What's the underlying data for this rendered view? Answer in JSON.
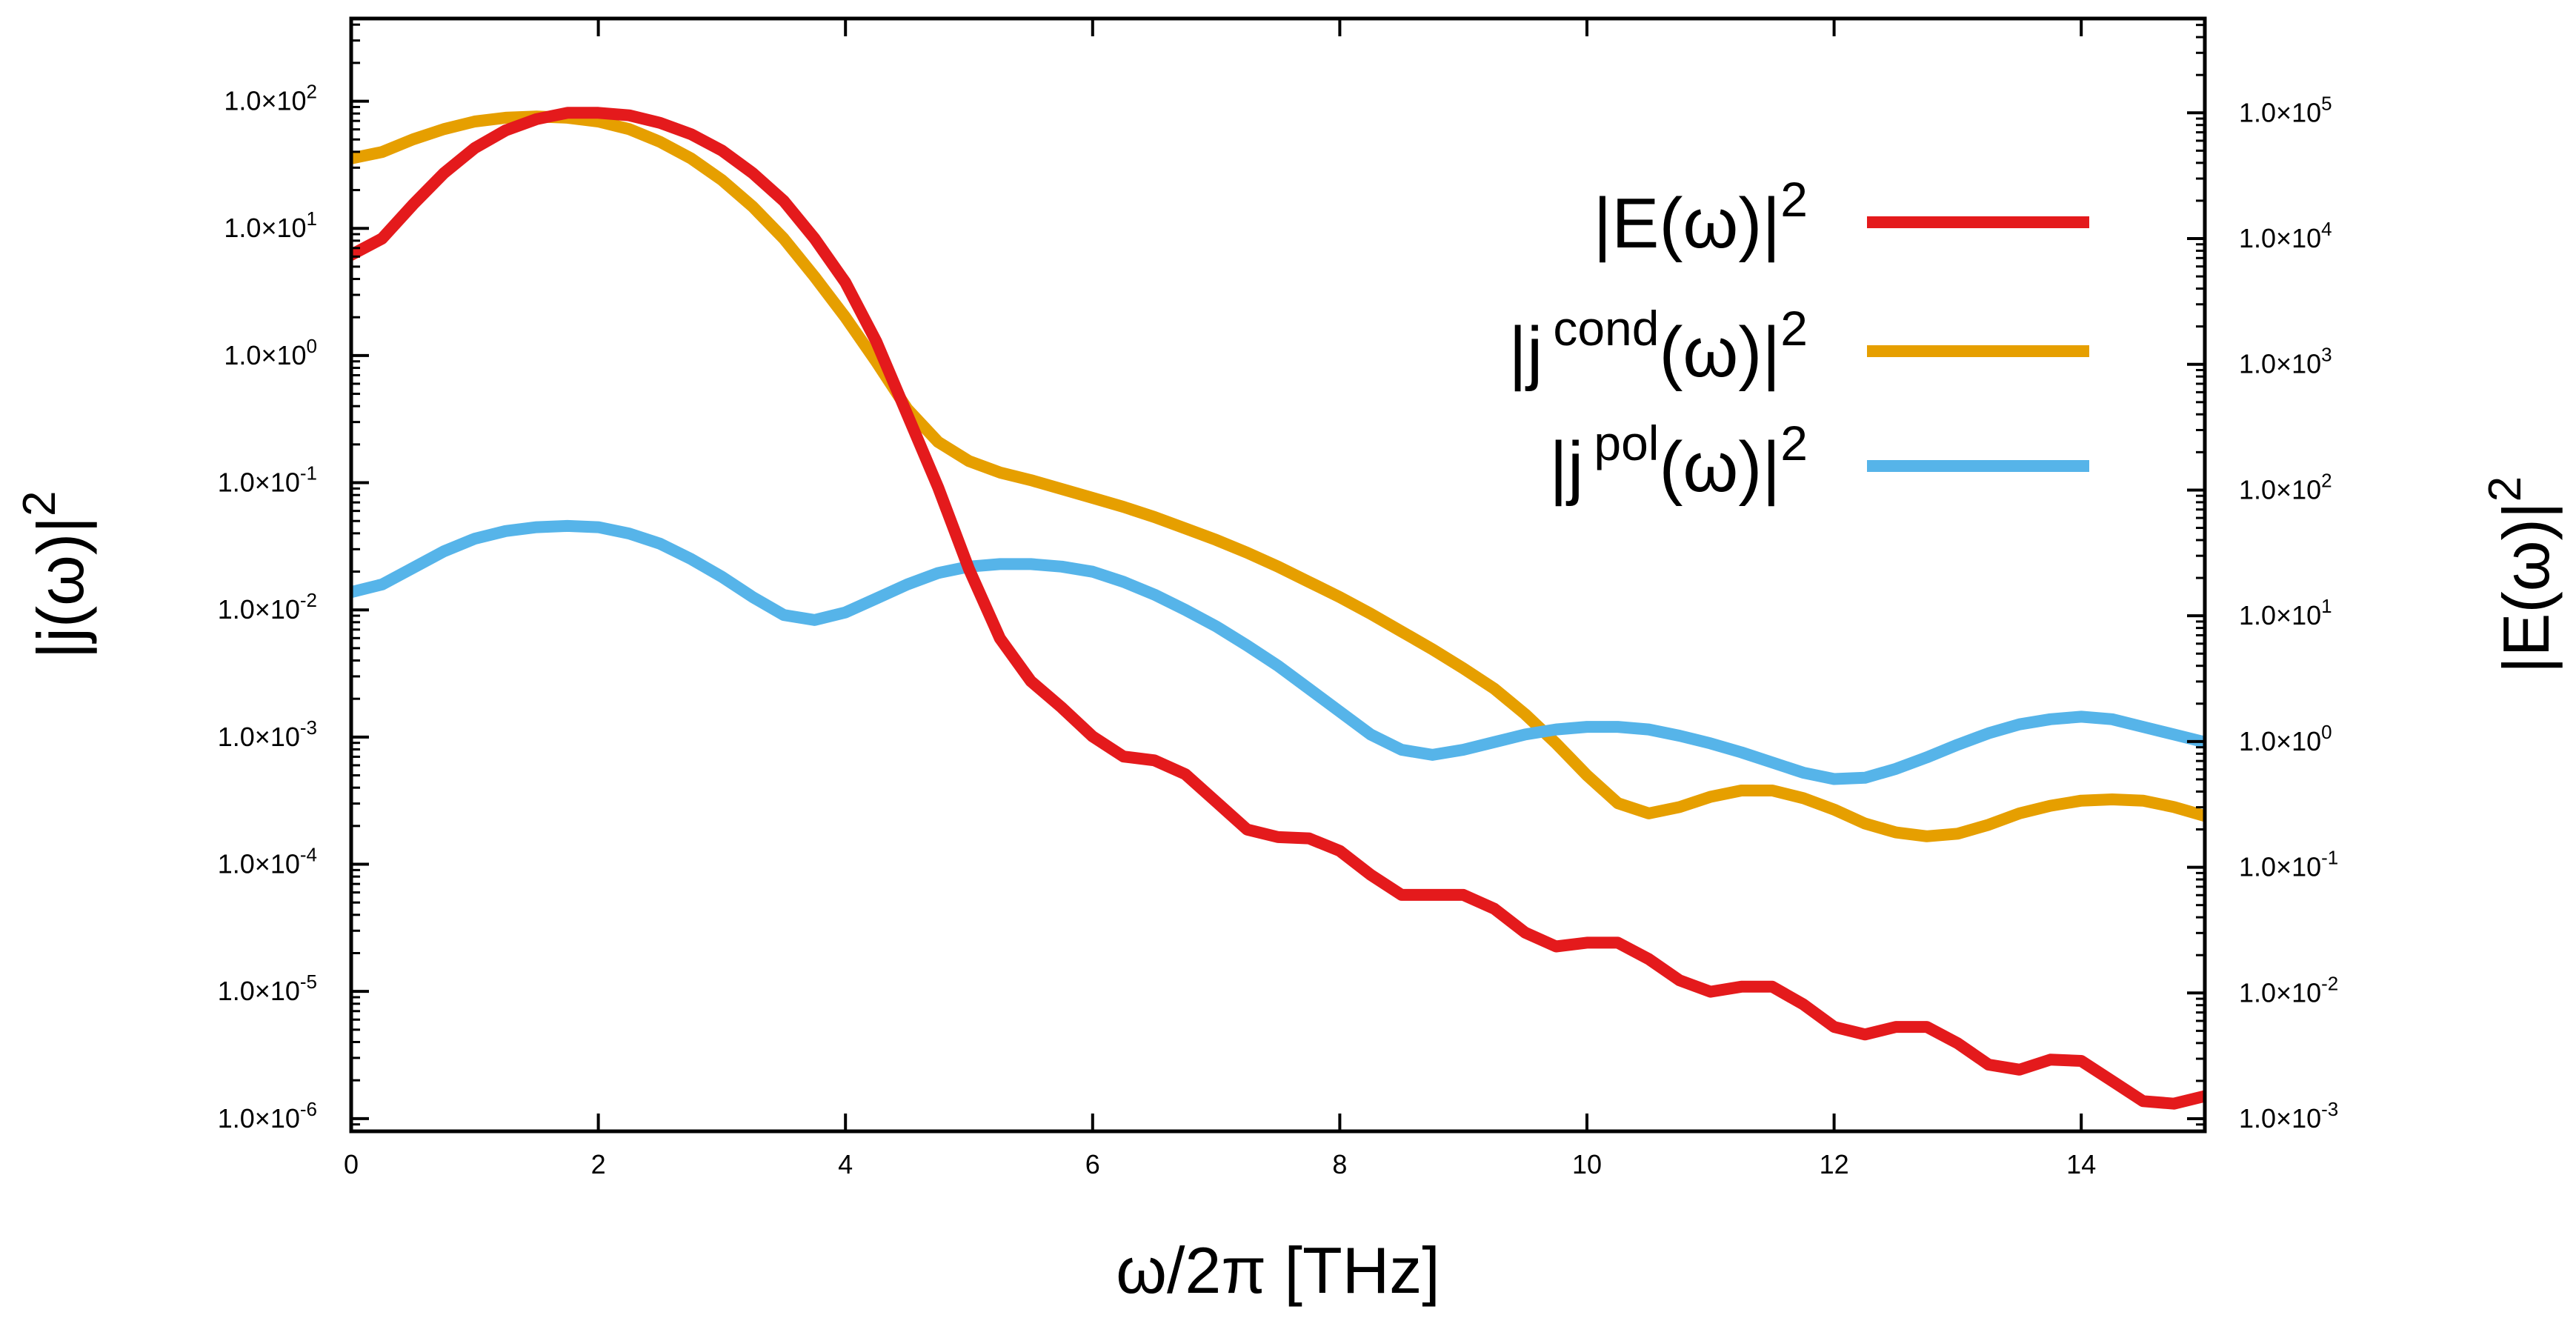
{
  "chart_data": {
    "type": "line",
    "title": "",
    "xlabel": "ω/2π [THz]",
    "ylabel_left": {
      "base": "|j(ω)|",
      "sup": "2"
    },
    "ylabel_right": {
      "base": "|E(ω)|",
      "sup": "2"
    },
    "xlim": [
      0,
      15
    ],
    "x_ticks": [
      0,
      2,
      4,
      6,
      8,
      10,
      12,
      14
    ],
    "y_left_log_range": [
      -6.1,
      2.65
    ],
    "y_right_log_range": [
      -3.1,
      5.75
    ],
    "y_left_ticks": [
      {
        "exp": 2,
        "mant": "1.0×10",
        "sup": "2"
      },
      {
        "exp": 1,
        "mant": "1.0×10",
        "sup": "1"
      },
      {
        "exp": 0,
        "mant": "1.0×10",
        "sup": "0"
      },
      {
        "exp": -1,
        "mant": "1.0×10",
        "sup": "-1"
      },
      {
        "exp": -2,
        "mant": "1.0×10",
        "sup": "-2"
      },
      {
        "exp": -3,
        "mant": "1.0×10",
        "sup": "-3"
      },
      {
        "exp": -4,
        "mant": "1.0×10",
        "sup": "-4"
      },
      {
        "exp": -5,
        "mant": "1.0×10",
        "sup": "-5"
      },
      {
        "exp": -6,
        "mant": "1.0×10",
        "sup": "-6"
      }
    ],
    "y_right_ticks": [
      {
        "exp": 5,
        "mant": "1.0×10",
        "sup": "5"
      },
      {
        "exp": 4,
        "mant": "1.0×10",
        "sup": "4"
      },
      {
        "exp": 3,
        "mant": "1.0×10",
        "sup": "3"
      },
      {
        "exp": 2,
        "mant": "1.0×10",
        "sup": "2"
      },
      {
        "exp": 1,
        "mant": "1.0×10",
        "sup": "1"
      },
      {
        "exp": 0,
        "mant": "1.0×10",
        "sup": "0"
      },
      {
        "exp": -1,
        "mant": "1.0×10",
        "sup": "-1"
      },
      {
        "exp": -2,
        "mant": "1.0×10",
        "sup": "-2"
      },
      {
        "exp": -3,
        "mant": "1.0×10",
        "sup": "-3"
      }
    ],
    "legend_position": "top-right",
    "series": [
      {
        "name": "|E(ω)|²",
        "legend_base": "|E(ω)|",
        "legend_sup": "2",
        "axis": "right",
        "color": "#e41a1c",
        "x": [
          0,
          0.25,
          0.5,
          0.75,
          1.0,
          1.25,
          1.5,
          1.75,
          2.0,
          2.25,
          2.5,
          2.75,
          3.0,
          3.25,
          3.5,
          3.75,
          4.0,
          4.25,
          4.5,
          4.75,
          5.0,
          5.25,
          5.5,
          5.75,
          6.0,
          6.25,
          6.5,
          6.75,
          7.0,
          7.25,
          7.5,
          7.75,
          8.0,
          8.25,
          8.5,
          8.75,
          9.0,
          9.25,
          9.5,
          9.75,
          10.0,
          10.25,
          10.5,
          10.75,
          11.0,
          11.25,
          11.5,
          11.75,
          12.0,
          12.25,
          12.5,
          12.75,
          13.0,
          13.25,
          13.5,
          13.75,
          14.0,
          14.25,
          14.5,
          14.75,
          15.0
        ],
        "log10": [
          3.87,
          4.0,
          4.27,
          4.52,
          4.72,
          4.86,
          4.95,
          5.0,
          5.0,
          4.98,
          4.92,
          4.83,
          4.7,
          4.52,
          4.3,
          4.0,
          3.65,
          3.18,
          2.6,
          2.02,
          1.37,
          0.82,
          0.48,
          0.27,
          0.04,
          -0.12,
          -0.15,
          -0.26,
          -0.48,
          -0.7,
          -0.76,
          -0.77,
          -0.87,
          -1.06,
          -1.22,
          -1.22,
          -1.22,
          -1.33,
          -1.52,
          -1.63,
          -1.6,
          -1.6,
          -1.73,
          -1.9,
          -1.99,
          -1.95,
          -1.95,
          -2.09,
          -2.27,
          -2.33,
          -2.27,
          -2.27,
          -2.4,
          -2.57,
          -2.61,
          -2.53,
          -2.54,
          -2.7,
          -2.86,
          -2.88,
          -2.82
        ]
      },
      {
        "name": "|j^cond(ω)|²",
        "legend_base": "|j",
        "legend_sup1": "cond",
        "legend_mid": "(ω)|",
        "legend_sup": "2",
        "axis": "left",
        "color": "#e69f00",
        "x": [
          0,
          0.25,
          0.5,
          0.75,
          1.0,
          1.25,
          1.5,
          1.75,
          2.0,
          2.25,
          2.5,
          2.75,
          3.0,
          3.25,
          3.5,
          3.75,
          4.0,
          4.25,
          4.5,
          4.75,
          5.0,
          5.25,
          5.5,
          5.75,
          6.0,
          6.25,
          6.5,
          6.75,
          7.0,
          7.25,
          7.5,
          7.75,
          8.0,
          8.25,
          8.5,
          8.75,
          9.0,
          9.25,
          9.5,
          9.75,
          10.0,
          10.25,
          10.5,
          10.75,
          11.0,
          11.25,
          11.5,
          11.75,
          12.0,
          12.25,
          12.5,
          12.75,
          13.0,
          13.25,
          13.5,
          13.75,
          14.0,
          14.25,
          14.5,
          14.75,
          15.0
        ],
        "log10": [
          1.55,
          1.6,
          1.7,
          1.78,
          1.84,
          1.87,
          1.88,
          1.87,
          1.84,
          1.78,
          1.68,
          1.55,
          1.38,
          1.17,
          0.92,
          0.62,
          0.3,
          -0.05,
          -0.42,
          -0.68,
          -0.83,
          -0.92,
          -0.98,
          -1.05,
          -1.12,
          -1.19,
          -1.27,
          -1.36,
          -1.45,
          -1.55,
          -1.66,
          -1.78,
          -1.9,
          -2.03,
          -2.17,
          -2.31,
          -2.46,
          -2.62,
          -2.82,
          -3.05,
          -3.3,
          -3.52,
          -3.6,
          -3.55,
          -3.47,
          -3.42,
          -3.42,
          -3.48,
          -3.57,
          -3.68,
          -3.75,
          -3.78,
          -3.76,
          -3.69,
          -3.6,
          -3.54,
          -3.5,
          -3.49,
          -3.5,
          -3.55,
          -3.62
        ]
      },
      {
        "name": "|j^pol(ω)|²",
        "legend_base": "|j",
        "legend_sup1": "pol",
        "legend_mid": "(ω)|",
        "legend_sup": "2",
        "axis": "left",
        "color": "#56b4e9",
        "x": [
          0,
          0.25,
          0.5,
          0.75,
          1.0,
          1.25,
          1.5,
          1.75,
          2.0,
          2.25,
          2.5,
          2.75,
          3.0,
          3.25,
          3.5,
          3.75,
          4.0,
          4.25,
          4.5,
          4.75,
          5.0,
          5.25,
          5.5,
          5.75,
          6.0,
          6.25,
          6.5,
          6.75,
          7.0,
          7.25,
          7.5,
          7.75,
          8.0,
          8.25,
          8.5,
          8.75,
          9.0,
          9.25,
          9.5,
          9.75,
          10.0,
          10.25,
          10.5,
          10.75,
          11.0,
          11.25,
          11.5,
          11.75,
          12.0,
          12.25,
          12.5,
          12.75,
          13.0,
          13.25,
          13.5,
          13.75,
          14.0,
          14.25,
          14.5,
          14.75,
          15.0
        ],
        "log10": [
          -1.86,
          -1.8,
          -1.67,
          -1.54,
          -1.44,
          -1.38,
          -1.35,
          -1.34,
          -1.35,
          -1.4,
          -1.48,
          -1.6,
          -1.74,
          -1.9,
          -2.04,
          -2.08,
          -2.02,
          -1.91,
          -1.8,
          -1.71,
          -1.66,
          -1.64,
          -1.64,
          -1.66,
          -1.7,
          -1.78,
          -1.88,
          -2.0,
          -2.13,
          -2.28,
          -2.44,
          -2.62,
          -2.8,
          -2.98,
          -3.1,
          -3.14,
          -3.1,
          -3.04,
          -2.98,
          -2.94,
          -2.92,
          -2.92,
          -2.94,
          -2.99,
          -3.05,
          -3.12,
          -3.2,
          -3.28,
          -3.33,
          -3.32,
          -3.25,
          -3.16,
          -3.06,
          -2.97,
          -2.9,
          -2.86,
          -2.84,
          -2.86,
          -2.92,
          -2.98,
          -3.04
        ]
      }
    ]
  }
}
